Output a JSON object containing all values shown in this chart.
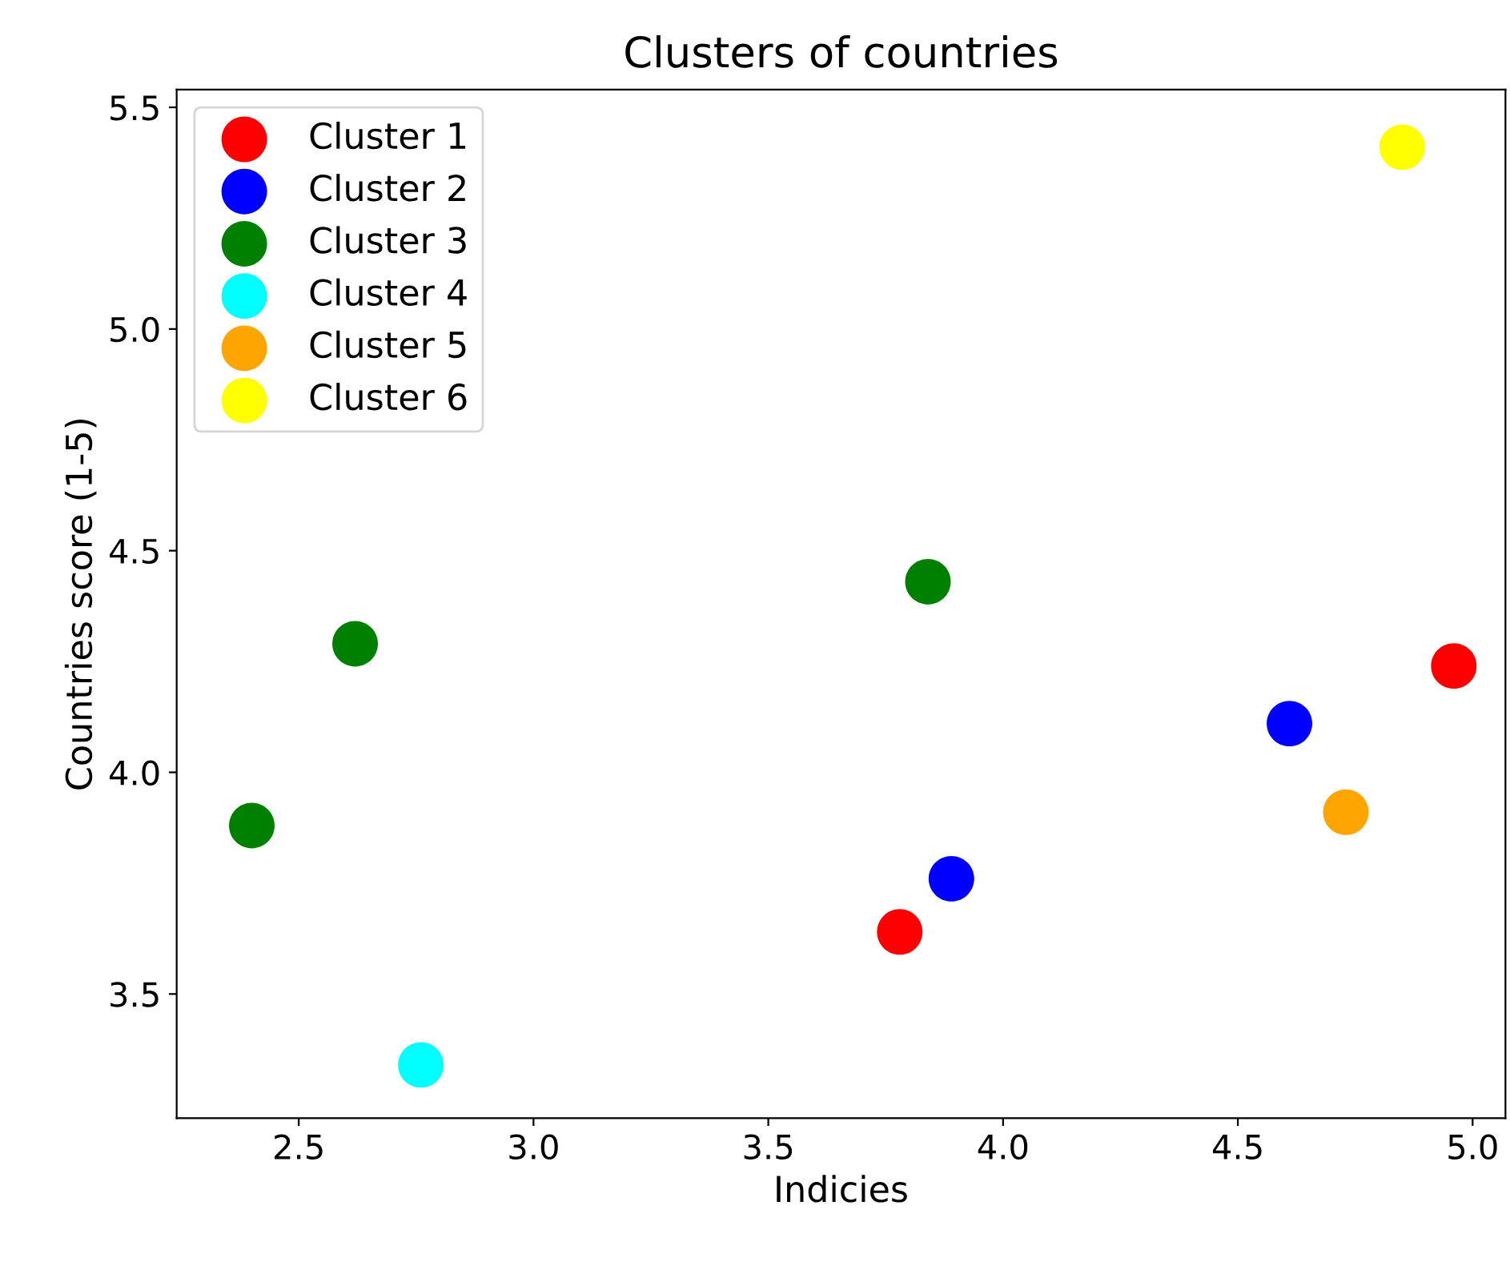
{
  "chart_data": {
    "type": "scatter",
    "title": "Clusters of countries",
    "xlabel": "Indicies",
    "ylabel": "Countries score (1-5)",
    "xlim": [
      2.24,
      5.07
    ],
    "ylim": [
      3.22,
      5.54
    ],
    "xticks": [
      2.5,
      {
        "value": 3,
        "label": "3.0"
      },
      3.5,
      {
        "value": 4,
        "label": "4.0"
      },
      4.5,
      {
        "value": 5,
        "label": "5.0"
      }
    ],
    "yticks": [
      3.5,
      {
        "value": 4,
        "label": "4.0"
      },
      4.5,
      {
        "value": 5,
        "label": "5.0"
      },
      5.5
    ],
    "legend": "top left",
    "marker": "circle",
    "grid": false,
    "series": [
      {
        "name": "Cluster 1",
        "color": "#ff0000",
        "x": [
          3.78,
          4.96
        ],
        "values": [
          3.64,
          4.24
        ]
      },
      {
        "name": "Cluster 2",
        "color": "#0000ff",
        "x": [
          3.89,
          4.61
        ],
        "values": [
          3.76,
          4.11
        ]
      },
      {
        "name": "Cluster 3",
        "color": "#008000",
        "x": [
          2.4,
          2.62,
          3.84
        ],
        "values": [
          3.88,
          4.29,
          4.43
        ]
      },
      {
        "name": "Cluster 4",
        "color": "#00ffff",
        "x": [
          2.76
        ],
        "values": [
          3.34
        ]
      },
      {
        "name": "Cluster 5",
        "color": "#ffa500",
        "x": [
          4.73
        ],
        "values": [
          3.91
        ]
      },
      {
        "name": "Cluster 6",
        "color": "#ffff00",
        "x": [
          4.85
        ],
        "values": [
          5.41
        ]
      }
    ]
  }
}
